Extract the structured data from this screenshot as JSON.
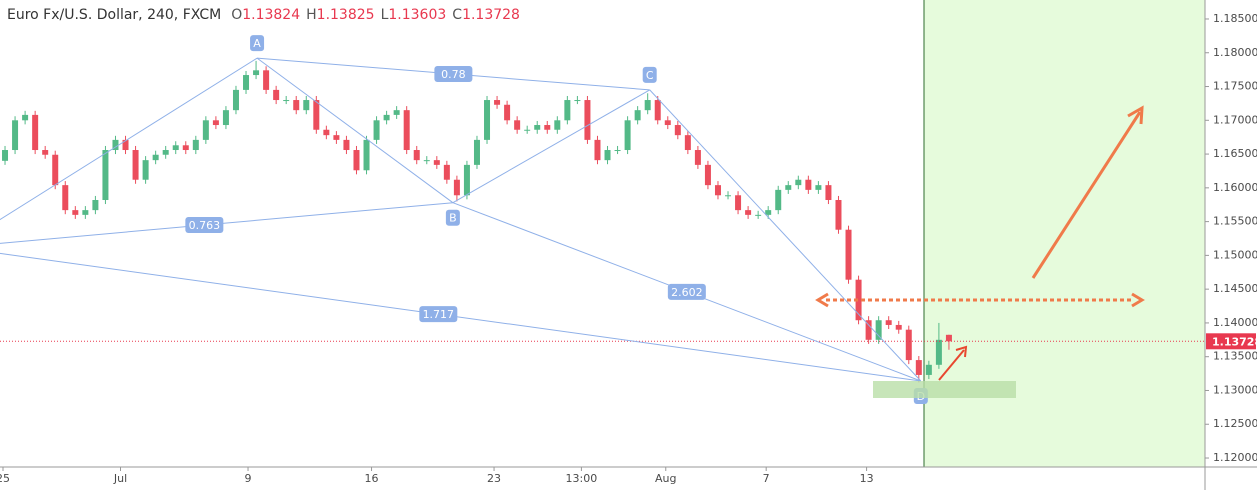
{
  "chart_data": {
    "type": "candlestick",
    "title": "Euro Fx/U.S. Dollar, 240, FXCM",
    "legend_labels": [
      "O",
      "H",
      "L",
      "C"
    ],
    "up_color": "#53b987",
    "down_color": "#eb4d5c",
    "xlim": [
      0,
      120
    ],
    "ylim": [
      1.11867,
      1.18781
    ],
    "xticks": [
      {
        "value": 0.3,
        "label": "25"
      },
      {
        "value": 12,
        "label": "Jul"
      },
      {
        "value": 24.7,
        "label": "9"
      },
      {
        "value": 37,
        "label": "16"
      },
      {
        "value": 49.2,
        "label": "23"
      },
      {
        "value": 57.9,
        "label": "13:00"
      },
      {
        "value": 66.3,
        "label": "Aug"
      },
      {
        "value": 76.3,
        "label": "7"
      },
      {
        "value": 86.3,
        "label": "13"
      }
    ],
    "yticks": [
      {
        "value": 1.12,
        "label": "1.12000"
      },
      {
        "value": 1.125,
        "label": "1.12500"
      },
      {
        "value": 1.13,
        "label": "1.13000"
      },
      {
        "value": 1.135,
        "label": "1.13500"
      },
      {
        "value": 1.14,
        "label": "1.14000"
      },
      {
        "value": 1.145,
        "label": "1.14500"
      },
      {
        "value": 1.15,
        "label": "1.15000"
      },
      {
        "value": 1.155,
        "label": "1.15500"
      },
      {
        "value": 1.16,
        "label": "1.16000"
      },
      {
        "value": 1.165,
        "label": "1.16500"
      },
      {
        "value": 1.17,
        "label": "1.17000"
      },
      {
        "value": 1.175,
        "label": "1.17500"
      },
      {
        "value": 1.18,
        "label": "1.18000"
      },
      {
        "value": 1.185,
        "label": "1.18500"
      }
    ],
    "open": [
      1.164,
      1.1656,
      1.17,
      1.1708,
      1.1656,
      1.1649,
      1.1604,
      1.1567,
      1.156,
      1.1567,
      1.1582,
      1.1656,
      1.1671,
      1.1656,
      1.1612,
      1.1641,
      1.1649,
      1.1656,
      1.1663,
      1.1656,
      1.1671,
      1.17,
      1.1693,
      1.1715,
      1.1745,
      1.1767,
      1.1774,
      1.1745,
      1.173,
      1.173,
      1.1715,
      1.173,
      1.1686,
      1.1678,
      1.1671,
      1.1656,
      1.1626,
      1.1671,
      1.17,
      1.1708,
      1.1715,
      1.1656,
      1.1641,
      1.1641,
      1.1634,
      1.1612,
      1.1589,
      1.1634,
      1.1671,
      1.173,
      1.1723,
      1.17,
      1.1686,
      1.1686,
      1.1693,
      1.1686,
      1.17,
      1.173,
      1.173,
      1.1671,
      1.1641,
      1.1656,
      1.1656,
      1.17,
      1.1715,
      1.173,
      1.17,
      1.1693,
      1.1678,
      1.1656,
      1.1634,
      1.1604,
      1.1589,
      1.1589,
      1.1567,
      1.156,
      1.156,
      1.1567,
      1.1597,
      1.1604,
      1.1612,
      1.1597,
      1.1604,
      1.1582,
      1.1538,
      1.1464,
      1.1404,
      1.1375,
      1.1404,
      1.1397,
      1.139,
      1.1345,
      1.1323,
      1.1338,
      1.13824
    ],
    "high": [
      1.1662,
      1.1706,
      1.1714,
      1.1714,
      1.1662,
      1.1655,
      1.161,
      1.1573,
      1.1573,
      1.1588,
      1.1662,
      1.1677,
      1.1677,
      1.1662,
      1.1647,
      1.1655,
      1.1662,
      1.1669,
      1.1669,
      1.1677,
      1.1706,
      1.1706,
      1.1721,
      1.1751,
      1.1773,
      1.1788,
      1.178,
      1.1751,
      1.1736,
      1.1736,
      1.1736,
      1.1736,
      1.1692,
      1.1684,
      1.1677,
      1.1662,
      1.1677,
      1.1706,
      1.1714,
      1.1721,
      1.1721,
      1.1662,
      1.1647,
      1.1647,
      1.164,
      1.1618,
      1.164,
      1.1677,
      1.1736,
      1.1736,
      1.1729,
      1.1706,
      1.1692,
      1.1699,
      1.1699,
      1.1706,
      1.1736,
      1.1736,
      1.1736,
      1.1677,
      1.1662,
      1.1662,
      1.1706,
      1.1721,
      1.174,
      1.1736,
      1.1706,
      1.1699,
      1.1684,
      1.1662,
      1.164,
      1.161,
      1.1595,
      1.1595,
      1.1573,
      1.1566,
      1.1573,
      1.1603,
      1.161,
      1.1618,
      1.1618,
      1.161,
      1.161,
      1.1588,
      1.1544,
      1.147,
      1.141,
      1.141,
      1.141,
      1.1403,
      1.1396,
      1.1351,
      1.1344,
      1.14,
      1.13825
    ],
    "low": [
      1.1634,
      1.165,
      1.1694,
      1.165,
      1.1643,
      1.1598,
      1.1561,
      1.1554,
      1.1554,
      1.1561,
      1.1576,
      1.165,
      1.165,
      1.1606,
      1.1606,
      1.1635,
      1.1643,
      1.165,
      1.165,
      1.165,
      1.1665,
      1.1687,
      1.1687,
      1.1709,
      1.1739,
      1.1761,
      1.1739,
      1.1724,
      1.1724,
      1.1709,
      1.1709,
      1.168,
      1.1672,
      1.1665,
      1.165,
      1.162,
      1.162,
      1.1665,
      1.1694,
      1.1702,
      1.165,
      1.1635,
      1.1635,
      1.1628,
      1.1606,
      1.158,
      1.1583,
      1.1628,
      1.1665,
      1.1717,
      1.1694,
      1.168,
      1.168,
      1.168,
      1.168,
      1.168,
      1.1694,
      1.1724,
      1.1665,
      1.1635,
      1.1635,
      1.165,
      1.165,
      1.1694,
      1.1709,
      1.1694,
      1.1687,
      1.1672,
      1.165,
      1.1628,
      1.1598,
      1.1583,
      1.1583,
      1.1561,
      1.1554,
      1.1554,
      1.1554,
      1.1561,
      1.1591,
      1.1598,
      1.1591,
      1.1591,
      1.1576,
      1.1532,
      1.1458,
      1.1398,
      1.1369,
      1.1369,
      1.1391,
      1.1384,
      1.1339,
      1.1312,
      1.1317,
      1.1332,
      1.13603
    ],
    "close": [
      1.1656,
      1.17,
      1.1708,
      1.1656,
      1.1649,
      1.1604,
      1.1567,
      1.156,
      1.1567,
      1.1582,
      1.1656,
      1.1671,
      1.1656,
      1.1612,
      1.1641,
      1.1649,
      1.1656,
      1.1663,
      1.1656,
      1.1671,
      1.17,
      1.1693,
      1.1715,
      1.1745,
      1.1767,
      1.1774,
      1.1745,
      1.173,
      1.173,
      1.1715,
      1.173,
      1.1686,
      1.1678,
      1.1671,
      1.1656,
      1.1626,
      1.1671,
      1.17,
      1.1708,
      1.1715,
      1.1656,
      1.1641,
      1.1641,
      1.1634,
      1.1612,
      1.1589,
      1.1634,
      1.1671,
      1.173,
      1.1723,
      1.17,
      1.1686,
      1.1686,
      1.1693,
      1.1686,
      1.17,
      1.173,
      1.173,
      1.1671,
      1.1641,
      1.1656,
      1.1656,
      1.17,
      1.1715,
      1.173,
      1.17,
      1.1693,
      1.1678,
      1.1656,
      1.1634,
      1.1604,
      1.1589,
      1.1589,
      1.1567,
      1.156,
      1.156,
      1.1567,
      1.1597,
      1.1604,
      1.1612,
      1.1597,
      1.1604,
      1.1582,
      1.1538,
      1.1464,
      1.1404,
      1.1375,
      1.1404,
      1.1397,
      1.139,
      1.1345,
      1.1323,
      1.1338,
      1.1375,
      1.13728
    ],
    "pattern": {
      "color": "#8fb0e8",
      "points": [
        {
          "x": -4.4,
          "y": 1.1512
        },
        {
          "label": "A",
          "x": 25.6,
          "y": 1.1792
        },
        {
          "label": "B",
          "x": 45.1,
          "y": 1.1578
        },
        {
          "label": "C",
          "x": 64.7,
          "y": 1.1745
        },
        {
          "label": "D",
          "x": 91.7,
          "y": 1.1314
        }
      ],
      "ratios": [
        0.78,
        0.763,
        2.602,
        1.717
      ]
    }
  }
}
